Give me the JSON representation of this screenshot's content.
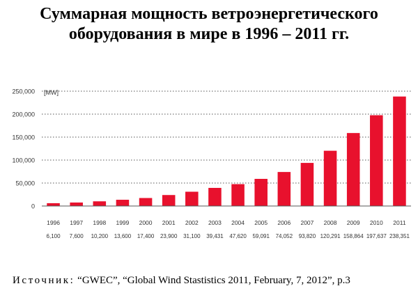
{
  "title_lines": [
    "Суммарная мощность ветроэнергетического",
    "оборудования в мире в 1996 – 2011 гг."
  ],
  "source": {
    "label": "Источник:",
    "text": "“GWEC”, “Global Wind Stastistics 2011, February, 7, 2012”, p.3"
  },
  "colors": {
    "bar": "#e8112d",
    "text": "#333333",
    "grid": "#555555"
  },
  "chart_data": {
    "type": "bar",
    "title": "",
    "xlabel": "",
    "ylabel": "",
    "unit_label": "[MW]",
    "ylim": [
      0,
      250000
    ],
    "yticks": [
      0,
      50000,
      100000,
      150000,
      200000,
      250000
    ],
    "ytick_labels": [
      "0",
      "50,000",
      "100,000",
      "150,000",
      "200,000",
      "250,000"
    ],
    "grid": true,
    "grid_style": "dotted",
    "categories": [
      "1996",
      "1997",
      "1998",
      "1999",
      "2000",
      "2001",
      "2002",
      "2003",
      "2004",
      "2005",
      "2006",
      "2007",
      "2008",
      "2009",
      "2010",
      "2011"
    ],
    "values": [
      6100,
      7600,
      10200,
      13600,
      17400,
      23900,
      31100,
      39431,
      47620,
      59091,
      74052,
      93820,
      120291,
      158864,
      197637,
      238351
    ],
    "value_labels": [
      "6,100",
      "7,600",
      "10,200",
      "13,600",
      "17,400",
      "23,900",
      "31,100",
      "39,431",
      "47,620",
      "59,091",
      "74,052",
      "93,820",
      "120,291",
      "158,864",
      "197,637",
      "238,351"
    ]
  }
}
